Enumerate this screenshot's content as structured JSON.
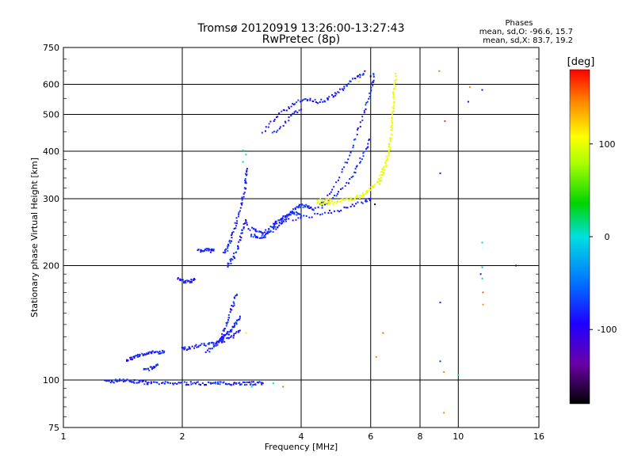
{
  "chart_data": {
    "type": "scatter",
    "title": "Tromsø 20120919 13:26:00-13:27:43",
    "subtitle": "RwPretec (8p)",
    "xlabel": "Frequency [MHz]",
    "ylabel": "Stationary phase Virtual Height [km]",
    "x_scale": "log2",
    "y_scale": "log",
    "xlim": [
      1,
      16
    ],
    "ylim": [
      75,
      750
    ],
    "x_ticks": [
      1,
      2,
      4,
      6,
      8,
      10,
      16
    ],
    "x_tick_labels": [
      "1",
      "2",
      "4",
      "6",
      "8",
      "10",
      "16"
    ],
    "y_ticks": [
      75,
      100,
      200,
      300,
      400,
      500,
      600,
      750
    ],
    "y_tick_labels": [
      "75",
      "100",
      "200",
      "300",
      "400",
      "500",
      "600",
      "750"
    ],
    "grid": true,
    "phase_info": {
      "title": "Phases",
      "line_o": "mean, sd,O: -96.6, 15.7",
      "line_x": "mean, sd,X: 83.7, 19.2"
    },
    "colorbar": {
      "label": "[deg]",
      "range": [
        -180,
        180
      ],
      "ticks": [
        -100,
        0,
        100
      ],
      "tick_labels": [
        "-100",
        "0",
        "100"
      ]
    },
    "series": [
      {
        "id": "o-mode",
        "phase_deg": -100,
        "traces": [
          [
            [
              1.28,
              99
            ],
            [
              1.33,
              99
            ],
            [
              1.38,
              100
            ],
            [
              1.43,
              100
            ],
            [
              1.48,
              99
            ],
            [
              1.53,
              99
            ],
            [
              1.58,
              99
            ],
            [
              1.63,
              98
            ],
            [
              1.7,
              98
            ],
            [
              1.8,
              98
            ],
            [
              1.9,
              98
            ],
            [
              2.0,
              98
            ],
            [
              2.1,
              98
            ],
            [
              2.2,
              98
            ],
            [
              2.3,
              98
            ],
            [
              2.4,
              98
            ],
            [
              2.5,
              98
            ],
            [
              2.6,
              98
            ],
            [
              2.7,
              98
            ],
            [
              2.8,
              98
            ],
            [
              2.9,
              98
            ],
            [
              3.0,
              98
            ],
            [
              3.1,
              98
            ],
            [
              3.2,
              98
            ]
          ],
          [
            [
              1.45,
              113
            ],
            [
              1.48,
              114
            ],
            [
              1.52,
              115
            ],
            [
              1.56,
              116
            ],
            [
              1.6,
              117
            ],
            [
              1.65,
              118
            ],
            [
              1.7,
              119
            ],
            [
              1.75,
              118
            ],
            [
              1.8,
              119
            ]
          ],
          [
            [
              1.6,
              106
            ],
            [
              1.65,
              107
            ],
            [
              1.7,
              108
            ],
            [
              1.73,
              110
            ]
          ],
          [
            [
              1.95,
              186
            ],
            [
              2.0,
              182
            ],
            [
              2.05,
              181
            ],
            [
              2.1,
              182
            ],
            [
              2.15,
              184
            ]
          ],
          [
            [
              2.2,
              219
            ],
            [
              2.25,
              219
            ],
            [
              2.3,
              220
            ],
            [
              2.35,
              219
            ],
            [
              2.4,
              219
            ]
          ],
          [
            [
              2.0,
              122
            ],
            [
              2.05,
              121
            ],
            [
              2.1,
              122
            ],
            [
              2.2,
              123
            ],
            [
              2.3,
              124
            ],
            [
              2.4,
              125
            ],
            [
              2.5,
              126
            ],
            [
              2.6,
              128
            ],
            [
              2.7,
              131
            ],
            [
              2.8,
              135
            ]
          ],
          [
            [
              2.3,
              118
            ],
            [
              2.4,
              122
            ],
            [
              2.5,
              128
            ],
            [
              2.55,
              135
            ],
            [
              2.6,
              142
            ],
            [
              2.65,
              152
            ],
            [
              2.7,
              160
            ],
            [
              2.75,
              168
            ]
          ],
          [
            [
              2.45,
              125
            ],
            [
              2.5,
              128
            ],
            [
              2.55,
              130
            ],
            [
              2.6,
              132
            ],
            [
              2.65,
              134
            ],
            [
              2.7,
              138
            ],
            [
              2.75,
              142
            ],
            [
              2.8,
              147
            ]
          ],
          [
            [
              2.55,
              215
            ],
            [
              2.6,
              222
            ],
            [
              2.65,
              232
            ],
            [
              2.7,
              246
            ],
            [
              2.75,
              262
            ],
            [
              2.8,
              280
            ],
            [
              2.85,
              300
            ],
            [
              2.88,
              320
            ],
            [
              2.9,
              340
            ],
            [
              2.92,
              360
            ]
          ],
          [
            [
              2.6,
              200
            ],
            [
              2.65,
              205
            ],
            [
              2.7,
              210
            ],
            [
              2.75,
              220
            ],
            [
              2.8,
              235
            ],
            [
              2.85,
              250
            ],
            [
              2.9,
              262
            ]
          ],
          [
            [
              2.9,
              262
            ],
            [
              3.0,
              240
            ],
            [
              3.1,
              238
            ],
            [
              3.2,
              238
            ],
            [
              3.3,
              242
            ],
            [
              3.4,
              248
            ],
            [
              3.5,
              255
            ],
            [
              3.6,
              262
            ],
            [
              3.7,
              270
            ],
            [
              3.8,
              278
            ],
            [
              3.9,
              285
            ],
            [
              4.0,
              288
            ],
            [
              4.1,
              287
            ],
            [
              4.2,
              284
            ],
            [
              4.3,
              280
            ]
          ],
          [
            [
              3.0,
              250
            ],
            [
              3.1,
              245
            ],
            [
              3.2,
              242
            ],
            [
              3.3,
              248
            ],
            [
              3.4,
              255
            ],
            [
              3.5,
              262
            ],
            [
              3.6,
              268
            ],
            [
              3.7,
              272
            ],
            [
              3.8,
              275
            ],
            [
              3.9,
              274
            ],
            [
              4.0,
              270
            ]
          ],
          [
            [
              3.2,
              450
            ],
            [
              3.4,
              480
            ],
            [
              3.6,
              510
            ],
            [
              3.8,
              530
            ],
            [
              4.0,
              545
            ],
            [
              4.2,
              550
            ],
            [
              4.4,
              540
            ],
            [
              4.6,
              545
            ],
            [
              4.8,
              560
            ],
            [
              5.0,
              575
            ],
            [
              5.2,
              595
            ],
            [
              5.4,
              615
            ],
            [
              5.6,
              630
            ],
            [
              5.75,
              640
            ]
          ],
          [
            [
              3.4,
              445
            ],
            [
              3.6,
              470
            ],
            [
              3.8,
              500
            ],
            [
              4.0,
              515
            ]
          ],
          [
            [
              4.3,
              280
            ],
            [
              4.6,
              300
            ],
            [
              4.9,
              330
            ],
            [
              5.2,
              370
            ],
            [
              5.4,
              410
            ],
            [
              5.6,
              460
            ],
            [
              5.8,
              510
            ],
            [
              5.95,
              560
            ],
            [
              6.05,
              600
            ],
            [
              6.1,
              640
            ]
          ],
          [
            [
              4.5,
              285
            ],
            [
              4.8,
              300
            ],
            [
              5.1,
              320
            ],
            [
              5.4,
              345
            ],
            [
              5.6,
              370
            ],
            [
              5.8,
              400
            ],
            [
              5.95,
              430
            ]
          ],
          [
            [
              3.4,
              260
            ],
            [
              3.8,
              265
            ],
            [
              4.2,
              270
            ],
            [
              4.6,
              275
            ],
            [
              5.0,
              280
            ],
            [
              5.4,
              288
            ],
            [
              5.8,
              296
            ],
            [
              6.0,
              300
            ]
          ]
        ]
      },
      {
        "id": "o-mode-sparse",
        "phase_deg": -110,
        "points": [
          [
            9.0,
            350
          ],
          [
            10.6,
            540
          ],
          [
            11.5,
            580
          ],
          [
            11.4,
            190
          ],
          [
            9.0,
            160
          ],
          [
            9.0,
            112
          ]
        ]
      },
      {
        "id": "cyan-scattered",
        "phase_deg": -40,
        "points": [
          [
            2.85,
            375
          ],
          [
            2.9,
            392
          ],
          [
            2.85,
            402
          ],
          [
            11.5,
            230
          ],
          [
            11.5,
            198
          ],
          [
            11.5,
            185
          ],
          [
            3.0,
            96
          ],
          [
            3.4,
            98
          ],
          [
            10.0,
            103
          ]
        ]
      },
      {
        "id": "x-mode",
        "phase_deg": 84,
        "traces": [
          [
            [
              4.4,
              292
            ],
            [
              4.6,
              290
            ],
            [
              4.8,
              292
            ],
            [
              5.0,
              295
            ],
            [
              5.2,
              298
            ],
            [
              5.4,
              300
            ],
            [
              5.6,
              304
            ],
            [
              5.8,
              310
            ],
            [
              6.0,
              318
            ],
            [
              6.2,
              330
            ],
            [
              6.4,
              350
            ],
            [
              6.6,
              380
            ],
            [
              6.7,
              420
            ],
            [
              6.8,
              470
            ],
            [
              6.85,
              520
            ],
            [
              6.9,
              580
            ],
            [
              6.93,
              640
            ]
          ],
          [
            [
              4.4,
              298
            ],
            [
              4.6,
              297
            ],
            [
              4.8,
              296
            ]
          ],
          [
            [
              6.3,
              330
            ],
            [
              6.4,
              340
            ],
            [
              6.5,
              358
            ],
            [
              6.6,
              375
            ],
            [
              6.7,
              400
            ],
            [
              6.75,
              440
            ],
            [
              6.8,
              480
            ],
            [
              6.85,
              540
            ],
            [
              6.88,
              600
            ]
          ]
        ],
        "points": [
          [
            2.9,
            133
          ],
          [
            5.6,
            610
          ]
        ]
      },
      {
        "id": "warm-scattered",
        "phase_deg": 150,
        "points": [
          [
            8.95,
            650
          ],
          [
            9.25,
            480
          ],
          [
            10.7,
            590
          ],
          [
            11.55,
            170
          ],
          [
            11.55,
            158
          ],
          [
            9.2,
            82
          ],
          [
            9.2,
            105
          ],
          [
            3.6,
            96
          ],
          [
            6.2,
            115
          ],
          [
            6.45,
            133
          ]
        ]
      },
      {
        "id": "dark-scattered",
        "phase_deg": -170,
        "points": [
          [
            14.0,
            200
          ],
          [
            6.15,
            290
          ],
          [
            5.8,
            650
          ],
          [
            6.0,
            630
          ]
        ]
      }
    ]
  }
}
